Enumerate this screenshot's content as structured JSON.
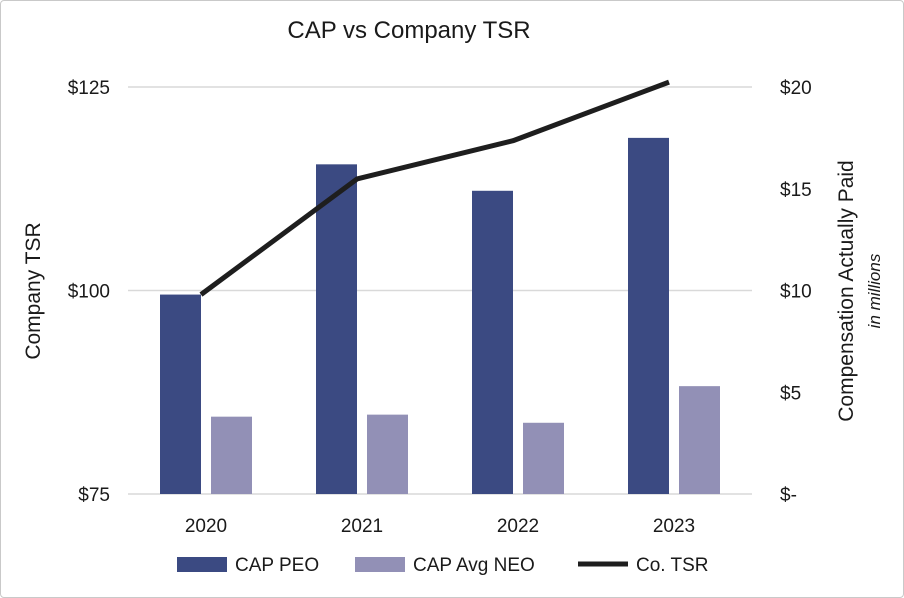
{
  "chart_data": {
    "type": "bar",
    "title": "CAP vs Company TSR",
    "categories": [
      "2020",
      "2021",
      "2022",
      "2023"
    ],
    "series": [
      {
        "name": "CAP PEO",
        "kind": "bar",
        "axis": "right",
        "color": "#3b4a82",
        "values": [
          9.8,
          16.2,
          14.9,
          17.5
        ]
      },
      {
        "name": "CAP Avg NEO",
        "kind": "bar",
        "axis": "right",
        "color": "#9290b6",
        "values": [
          3.8,
          3.9,
          3.5,
          5.3
        ]
      },
      {
        "name": "Co. TSR",
        "kind": "line",
        "axis": "left",
        "color": "#1e1e1e",
        "values": [
          99.5,
          113.7,
          118.4,
          125.6
        ]
      }
    ],
    "y_left": {
      "label": "Company TSR",
      "ylim": [
        75,
        125
      ],
      "ticks": [
        {
          "value": 75,
          "label": "$75"
        },
        {
          "value": 100,
          "label": "$100"
        },
        {
          "value": 125,
          "label": "$125"
        }
      ]
    },
    "y_right": {
      "label": "Compensation Actually Paid",
      "sublabel": "in millions",
      "ylim": [
        0,
        20
      ],
      "ticks": [
        {
          "value": 0,
          "label": "$-"
        },
        {
          "value": 5,
          "label": "$5"
        },
        {
          "value": 10,
          "label": "$10"
        },
        {
          "value": 15,
          "label": "$15"
        },
        {
          "value": 20,
          "label": "$20"
        }
      ]
    },
    "grid": true,
    "legend": "bottom"
  }
}
